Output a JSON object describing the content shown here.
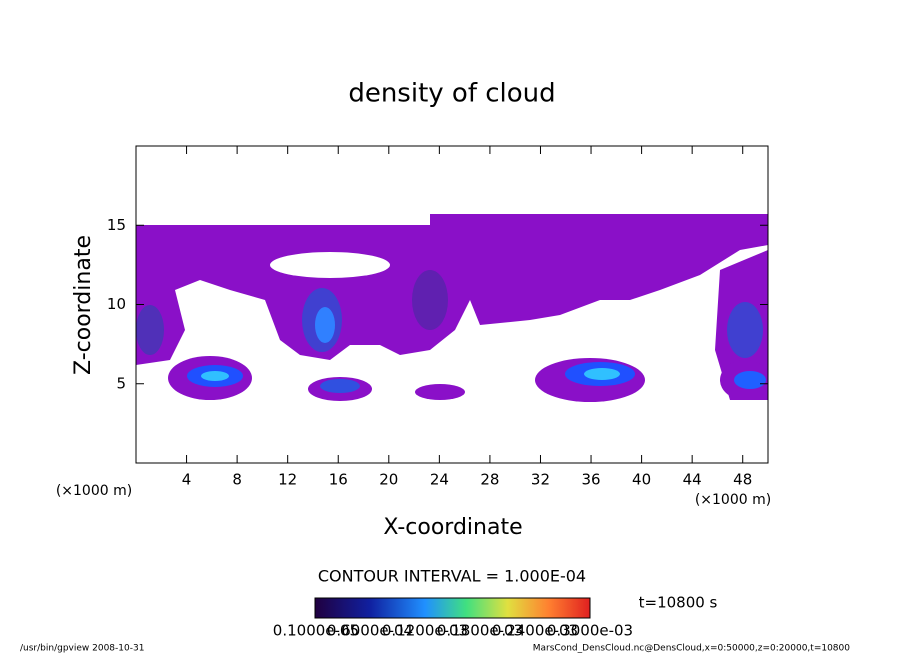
{
  "chart_data": {
    "type": "contour",
    "title": "density of cloud",
    "x_label": "X-coordinate",
    "y_label": "Z-coordinate",
    "x_unit_left": "(×1000 m)",
    "x_unit_right": "(×1000 m)",
    "xlim": [
      0,
      50
    ],
    "xticks": [
      4,
      8,
      12,
      16,
      20,
      24,
      28,
      32,
      36,
      40,
      44,
      48
    ],
    "ylim": [
      0,
      20
    ],
    "yticks": [
      5,
      10,
      15
    ],
    "contour_interval": "CONTOUR INTERVAL = 1.000E-04",
    "time_label": "t=10800 s",
    "colorbar": {
      "lim": [
        0,
        0.0003
      ],
      "ticks": [
        {
          "value": 1e-06,
          "label": "0.1000e-05"
        },
        {
          "value": 6e-05,
          "label": "0.6000e-04"
        },
        {
          "value": 0.00012,
          "label": "0.1200e-03"
        },
        {
          "value": 0.00018,
          "label": "0.1800e-03"
        },
        {
          "value": 0.00024,
          "label": "0.2400e-03"
        },
        {
          "value": 0.0003,
          "label": "0.3000e-03"
        }
      ]
    },
    "footer_left": "/usr/bin/gpview  2008-10-31",
    "footer_right": "MarsCond_DensCloud.nc@DensCloud,x=0:50000,z=0:20000,t=10800"
  }
}
